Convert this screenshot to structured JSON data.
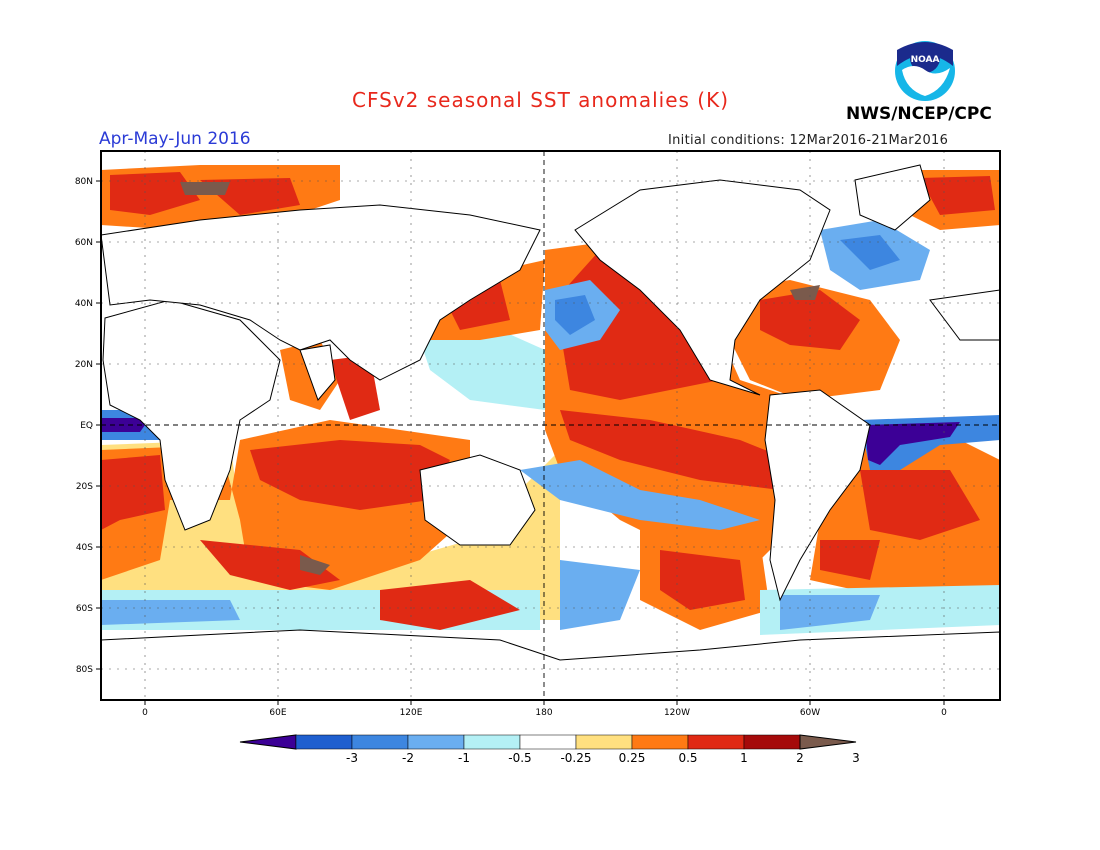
{
  "title": "CFSv2 seasonal SST anomalies (K)",
  "season": "Apr-May-Jun 2016",
  "initial_conditions": "Initial conditions: 12Mar2016-21Mar2016",
  "agency": "NWS/NCEP/CPC",
  "logo_text": "NOAA",
  "map": {
    "lat_labels": [
      "80N",
      "60N",
      "40N",
      "20N",
      "EQ",
      "20S",
      "40S",
      "60S",
      "80S"
    ],
    "lon_labels": [
      "0",
      "60E",
      "120E",
      "180",
      "120W",
      "60W",
      "0"
    ]
  },
  "colorbar": {
    "labels": [
      "-3",
      "-2",
      "-1",
      "-0.5",
      "-0.25",
      "0.25",
      "0.5",
      "1",
      "2",
      "3"
    ],
    "colors": [
      "#3c0096",
      "#1f5fcf",
      "#3d86e0",
      "#6aaef0",
      "#b4f0f5",
      "#ffffff",
      "#ffe080",
      "#ff7a14",
      "#e02a14",
      "#a50a0a",
      "#7a5a4c"
    ]
  }
}
